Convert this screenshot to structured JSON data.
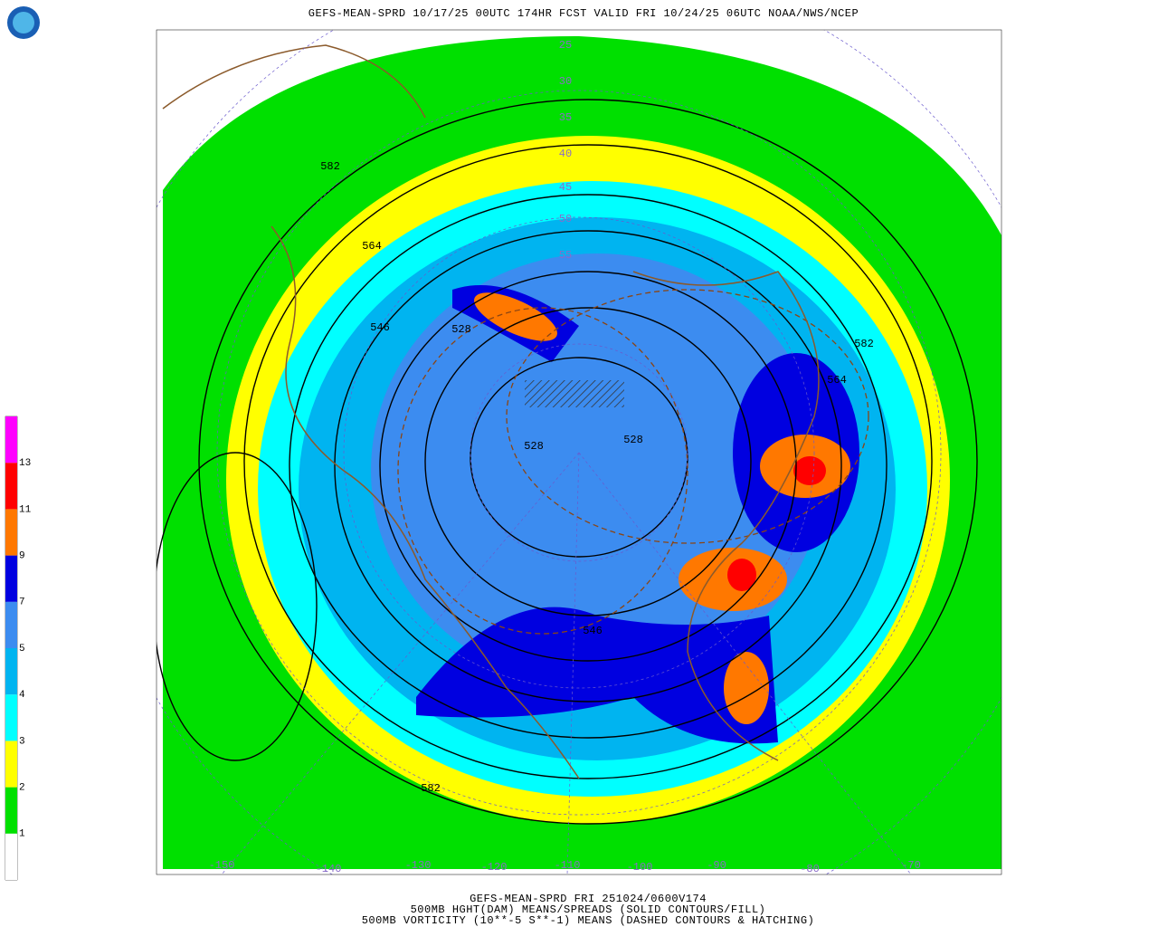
{
  "header": {
    "title": "GEFS-MEAN-SPRD 10/17/25 00UTC 174HR FCST VALID FRI 10/24/25 06UTC NOAA/NWS/NCEP"
  },
  "footer": {
    "lines": [
      "GEFS-MEAN-SPRD FRI 251024/0600V174",
      "500MB HGHT(DAM) MEANS/SPREADS (SOLID CONTOURS/FILL)",
      "500MB VORTICITY (10**-5 S**-1) MEANS (DASHED CONTOURS & HATCHING)"
    ]
  },
  "colorbar": {
    "colors": [
      "#ffffff",
      "#00e000",
      "#ffff00",
      "#00ffff",
      "#00b4f0",
      "#3c8cf0",
      "#0000e0",
      "#ff7800",
      "#ff0000",
      "#ff00ff"
    ],
    "labels": [
      1,
      2,
      3,
      4,
      5,
      7,
      9,
      11,
      13
    ]
  },
  "contour_labels": [
    "582",
    "564",
    "546",
    "528",
    "528",
    "528",
    "546",
    "582",
    "582",
    "564"
  ],
  "latitude_labels": [
    "25",
    "30",
    "35",
    "40",
    "45",
    "50",
    "55"
  ],
  "longitude_labels": [
    "-150",
    "-140",
    "-130",
    "-120",
    "-110",
    "-100",
    "-90",
    "-80",
    "-70"
  ]
}
